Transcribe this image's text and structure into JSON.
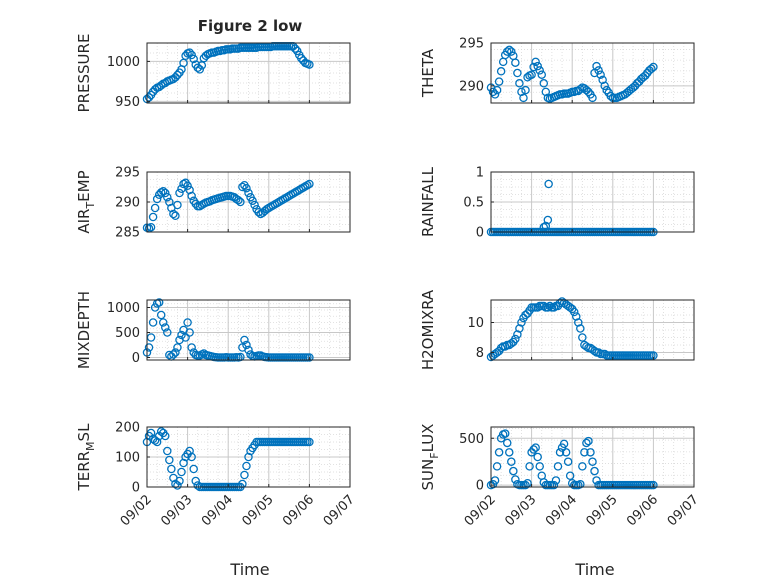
{
  "figure": {
    "title": "Figure 2 low",
    "xlabel": "Time",
    "marker_color": "#0072BD",
    "grid": true
  },
  "time_ticks": [
    "09/02",
    "09/03",
    "09/04",
    "09/05",
    "09/06",
    "09/07"
  ],
  "chart_data": [
    {
      "type": "scatter",
      "ylabel": "PRESSURE",
      "ylim": [
        948,
        1023
      ],
      "yticks": [
        950,
        1000
      ],
      "xlim": [
        0,
        5
      ],
      "x": [
        0.0,
        0.05,
        0.1,
        0.15,
        0.2,
        0.25,
        0.3,
        0.35,
        0.4,
        0.45,
        0.5,
        0.55,
        0.6,
        0.65,
        0.7,
        0.75,
        0.8,
        0.85,
        0.9,
        0.95,
        1.0,
        1.05,
        1.1,
        1.15,
        1.2,
        1.25,
        1.3,
        1.35,
        1.4,
        1.45,
        1.5,
        1.55,
        1.6,
        1.65,
        1.7,
        1.75,
        1.8,
        1.85,
        1.9,
        1.95,
        2.0,
        2.05,
        2.1,
        2.15,
        2.2,
        2.25,
        2.3,
        2.35,
        2.4,
        2.45,
        2.5,
        2.55,
        2.6,
        2.65,
        2.7,
        2.75,
        2.8,
        2.85,
        2.9,
        2.95,
        3.0,
        3.05,
        3.1,
        3.15,
        3.2,
        3.25,
        3.3,
        3.35,
        3.4,
        3.45,
        3.5,
        3.55,
        3.6,
        3.65,
        3.7,
        3.75,
        3.8,
        3.85,
        3.9,
        3.95,
        4.0
      ],
      "y": [
        953,
        955,
        958,
        962,
        965,
        967,
        968,
        970,
        972,
        973,
        975,
        976,
        977,
        978,
        980,
        983,
        986,
        990,
        998,
        1007,
        1010,
        1011,
        1008,
        1003,
        996,
        992,
        990,
        995,
        1004,
        1007,
        1009,
        1010,
        1011,
        1011,
        1012,
        1013,
        1013,
        1014,
        1014,
        1015,
        1015,
        1015,
        1016,
        1016,
        1016,
        1016,
        1017,
        1017,
        1017,
        1017,
        1017,
        1017,
        1017,
        1017,
        1017,
        1018,
        1018,
        1018,
        1018,
        1018,
        1018,
        1018,
        1019,
        1019,
        1019,
        1019,
        1019,
        1019,
        1019,
        1019,
        1019,
        1019,
        1019,
        1016,
        1013,
        1008,
        1004,
        1001,
        998,
        997,
        996
      ]
    },
    {
      "type": "scatter",
      "ylabel": "THETA",
      "ylim": [
        288,
        295
      ],
      "yticks": [
        290,
        295
      ],
      "xlim": [
        0,
        5
      ],
      "x": [
        0.0,
        0.05,
        0.1,
        0.15,
        0.2,
        0.25,
        0.3,
        0.35,
        0.4,
        0.45,
        0.5,
        0.55,
        0.6,
        0.65,
        0.7,
        0.75,
        0.8,
        0.85,
        0.9,
        0.95,
        1.0,
        1.05,
        1.1,
        1.15,
        1.2,
        1.25,
        1.3,
        1.35,
        1.4,
        1.45,
        1.5,
        1.55,
        1.6,
        1.65,
        1.7,
        1.75,
        1.8,
        1.85,
        1.9,
        1.95,
        2.0,
        2.05,
        2.1,
        2.15,
        2.2,
        2.25,
        2.3,
        2.35,
        2.4,
        2.45,
        2.5,
        2.55,
        2.6,
        2.65,
        2.7,
        2.75,
        2.8,
        2.85,
        2.9,
        2.95,
        3.0,
        3.05,
        3.1,
        3.15,
        3.2,
        3.25,
        3.3,
        3.35,
        3.4,
        3.45,
        3.5,
        3.55,
        3.6,
        3.65,
        3.7,
        3.75,
        3.8,
        3.85,
        3.9,
        3.95,
        4.0
      ],
      "y": [
        289.8,
        289.3,
        289.0,
        289.5,
        290.5,
        291.7,
        292.8,
        293.6,
        294.0,
        294.2,
        294.0,
        293.5,
        292.7,
        291.5,
        290.3,
        289.3,
        288.6,
        289.5,
        291.0,
        291.2,
        291.3,
        292.2,
        292.8,
        292.3,
        291.8,
        291.3,
        290.3,
        289.3,
        288.6,
        288.5,
        288.6,
        288.7,
        288.8,
        288.9,
        289.0,
        289.0,
        289.1,
        289.1,
        289.1,
        289.2,
        289.3,
        289.3,
        289.4,
        289.4,
        289.6,
        289.8,
        289.7,
        289.5,
        289.3,
        289.0,
        288.6,
        291.5,
        292.3,
        291.8,
        291.3,
        290.7,
        290.0,
        289.5,
        289.2,
        288.8,
        288.6,
        288.6,
        288.6,
        288.7,
        288.8,
        288.9,
        289.0,
        289.2,
        289.4,
        289.6,
        289.8,
        290.0,
        290.3,
        290.5,
        290.8,
        291.0,
        291.2,
        291.5,
        291.8,
        292.0,
        292.2
      ]
    },
    {
      "type": "scatter",
      "ylabel": "AIR_TEMP",
      "ylim": [
        285,
        295
      ],
      "yticks": [
        285,
        290,
        295
      ],
      "xlim": [
        0,
        5
      ],
      "x": [
        0.0,
        0.05,
        0.1,
        0.15,
        0.2,
        0.25,
        0.3,
        0.35,
        0.4,
        0.45,
        0.5,
        0.55,
        0.6,
        0.65,
        0.7,
        0.75,
        0.8,
        0.85,
        0.9,
        0.95,
        1.0,
        1.05,
        1.1,
        1.15,
        1.2,
        1.25,
        1.3,
        1.35,
        1.4,
        1.45,
        1.5,
        1.55,
        1.6,
        1.65,
        1.7,
        1.75,
        1.8,
        1.85,
        1.9,
        1.95,
        2.0,
        2.05,
        2.1,
        2.15,
        2.2,
        2.25,
        2.3,
        2.35,
        2.4,
        2.45,
        2.5,
        2.55,
        2.6,
        2.65,
        2.7,
        2.75,
        2.8,
        2.85,
        2.9,
        2.95,
        3.0,
        3.05,
        3.1,
        3.15,
        3.2,
        3.25,
        3.3,
        3.35,
        3.4,
        3.45,
        3.5,
        3.55,
        3.6,
        3.65,
        3.7,
        3.75,
        3.8,
        3.85,
        3.9,
        3.95,
        4.0
      ],
      "y": [
        285.7,
        285.6,
        285.8,
        287.5,
        289.0,
        290.5,
        291.2,
        291.6,
        291.8,
        291.5,
        290.8,
        290.0,
        289.0,
        288.0,
        287.7,
        289.5,
        291.5,
        292.2,
        293.0,
        293.2,
        292.7,
        292.0,
        291.0,
        290.2,
        289.7,
        289.3,
        289.3,
        289.5,
        289.7,
        289.9,
        290.0,
        290.1,
        290.3,
        290.4,
        290.5,
        290.6,
        290.7,
        290.8,
        290.9,
        291.0,
        291.0,
        291.0,
        290.9,
        290.8,
        290.5,
        290.3,
        290.0,
        292.5,
        292.8,
        292.3,
        291.5,
        290.8,
        290.2,
        289.5,
        288.8,
        288.3,
        288.0,
        288.2,
        288.5,
        288.8,
        289.0,
        289.2,
        289.4,
        289.6,
        289.8,
        290.0,
        290.2,
        290.4,
        290.6,
        290.8,
        291.0,
        291.2,
        291.4,
        291.6,
        291.8,
        292.0,
        292.2,
        292.4,
        292.6,
        292.8,
        293.0
      ]
    },
    {
      "type": "scatter",
      "ylabel": "RAINFALL",
      "ylim": [
        0,
        1
      ],
      "yticks": [
        0,
        0.5,
        1
      ],
      "xlim": [
        0,
        5
      ],
      "x": [
        0.0,
        0.05,
        0.1,
        0.15,
        0.2,
        0.25,
        0.3,
        0.35,
        0.4,
        0.45,
        0.5,
        0.55,
        0.6,
        0.65,
        0.7,
        0.75,
        0.8,
        0.85,
        0.9,
        0.95,
        1.0,
        1.05,
        1.1,
        1.15,
        1.2,
        1.25,
        1.3,
        1.35,
        1.4,
        1.45,
        1.5,
        1.55,
        1.6,
        1.65,
        1.7,
        1.75,
        1.8,
        1.85,
        1.9,
        1.95,
        2.0,
        2.05,
        2.1,
        2.15,
        2.2,
        2.25,
        2.3,
        2.35,
        2.4,
        2.45,
        2.5,
        2.55,
        2.6,
        2.65,
        2.7,
        2.75,
        2.8,
        2.85,
        2.9,
        2.95,
        3.0,
        3.05,
        3.1,
        3.15,
        3.2,
        3.25,
        3.3,
        3.35,
        3.4,
        3.45,
        3.5,
        3.55,
        3.6,
        3.65,
        3.7,
        3.75,
        3.8,
        3.85,
        3.9,
        3.95,
        4.0,
        1.3,
        1.35,
        1.4,
        1.42
      ],
      "y": [
        0,
        0,
        0,
        0,
        0,
        0,
        0,
        0,
        0,
        0,
        0,
        0,
        0,
        0,
        0,
        0,
        0,
        0,
        0,
        0,
        0,
        0,
        0,
        0,
        0,
        0,
        0,
        0,
        0,
        0,
        0,
        0,
        0,
        0,
        0,
        0,
        0,
        0,
        0,
        0,
        0,
        0,
        0,
        0,
        0,
        0,
        0,
        0,
        0,
        0,
        0,
        0,
        0,
        0,
        0,
        0,
        0,
        0,
        0,
        0,
        0,
        0,
        0,
        0,
        0,
        0,
        0,
        0,
        0,
        0,
        0,
        0,
        0,
        0,
        0,
        0,
        0,
        0,
        0,
        0,
        0,
        0.08,
        0.1,
        0.2,
        0.8
      ]
    },
    {
      "type": "scatter",
      "ylabel": "MIXDEPTH",
      "ylim": [
        -50,
        1150
      ],
      "yticks": [
        0,
        500,
        1000
      ],
      "xlim": [
        0,
        5
      ],
      "x": [
        0.0,
        0.05,
        0.1,
        0.15,
        0.2,
        0.25,
        0.3,
        0.35,
        0.4,
        0.45,
        0.5,
        0.55,
        0.6,
        0.65,
        0.7,
        0.75,
        0.8,
        0.85,
        0.9,
        0.95,
        1.0,
        1.05,
        1.1,
        1.15,
        1.2,
        1.25,
        1.3,
        1.35,
        1.4,
        1.45,
        1.5,
        1.55,
        1.6,
        1.65,
        1.7,
        1.75,
        1.8,
        1.85,
        1.9,
        1.95,
        2.0,
        2.05,
        2.1,
        2.15,
        2.2,
        2.25,
        2.3,
        2.35,
        2.4,
        2.45,
        2.5,
        2.55,
        2.6,
        2.65,
        2.7,
        2.75,
        2.8,
        2.85,
        2.9,
        2.95,
        3.0,
        3.05,
        3.1,
        3.15,
        3.2,
        3.25,
        3.3,
        3.35,
        3.4,
        3.45,
        3.5,
        3.55,
        3.6,
        3.65,
        3.7,
        3.75,
        3.8,
        3.85,
        3.9,
        3.95,
        4.0
      ],
      "y": [
        100,
        200,
        400,
        700,
        1000,
        1080,
        1100,
        850,
        700,
        600,
        500,
        50,
        20,
        60,
        100,
        200,
        350,
        450,
        550,
        400,
        700,
        500,
        200,
        100,
        50,
        40,
        40,
        60,
        80,
        50,
        40,
        30,
        20,
        10,
        5,
        0,
        0,
        0,
        0,
        5,
        0,
        0,
        0,
        0,
        5,
        0,
        10,
        200,
        350,
        250,
        150,
        60,
        30,
        20,
        30,
        40,
        40,
        20,
        10,
        5,
        0,
        0,
        0,
        0,
        0,
        0,
        0,
        0,
        0,
        0,
        0,
        0,
        0,
        0,
        0,
        0,
        0,
        0,
        0,
        0,
        0
      ]
    },
    {
      "type": "scatter",
      "ylabel": "H2OMIXRA",
      "ylim": [
        7.5,
        11.5
      ],
      "yticks": [
        8,
        10
      ],
      "xlim": [
        0,
        5
      ],
      "x": [
        0.0,
        0.05,
        0.1,
        0.15,
        0.2,
        0.25,
        0.3,
        0.35,
        0.4,
        0.45,
        0.5,
        0.55,
        0.6,
        0.65,
        0.7,
        0.75,
        0.8,
        0.85,
        0.9,
        0.95,
        1.0,
        1.05,
        1.1,
        1.15,
        1.2,
        1.25,
        1.3,
        1.35,
        1.4,
        1.45,
        1.5,
        1.55,
        1.6,
        1.65,
        1.7,
        1.75,
        1.8,
        1.85,
        1.9,
        1.95,
        2.0,
        2.05,
        2.1,
        2.15,
        2.2,
        2.25,
        2.3,
        2.35,
        2.4,
        2.45,
        2.5,
        2.55,
        2.6,
        2.65,
        2.7,
        2.75,
        2.8,
        2.85,
        2.9,
        2.95,
        3.0,
        3.05,
        3.1,
        3.15,
        3.2,
        3.25,
        3.3,
        3.35,
        3.4,
        3.45,
        3.5,
        3.55,
        3.6,
        3.65,
        3.7,
        3.75,
        3.8,
        3.85,
        3.9,
        3.95,
        4.0
      ],
      "y": [
        7.7,
        7.8,
        7.9,
        8.0,
        8.1,
        8.3,
        8.4,
        8.4,
        8.5,
        8.5,
        8.6,
        8.7,
        8.9,
        9.2,
        9.6,
        10.0,
        10.3,
        10.5,
        10.6,
        10.8,
        11.0,
        11.0,
        11.0,
        11.0,
        11.1,
        11.1,
        11.1,
        11.0,
        11.0,
        11.1,
        11.0,
        11.0,
        11.1,
        11.1,
        11.3,
        11.4,
        11.3,
        11.2,
        11.1,
        11.0,
        10.9,
        10.7,
        10.4,
        10.0,
        9.6,
        9.0,
        8.5,
        8.4,
        8.3,
        8.3,
        8.2,
        8.1,
        8.0,
        8.0,
        7.9,
        7.9,
        7.9,
        7.8,
        7.8,
        7.8,
        7.8,
        7.8,
        7.8,
        7.8,
        7.8,
        7.8,
        7.8,
        7.8,
        7.8,
        7.8,
        7.8,
        7.8,
        7.8,
        7.8,
        7.8,
        7.8,
        7.8,
        7.8,
        7.8,
        7.8,
        7.8
      ]
    },
    {
      "type": "scatter",
      "ylabel": "TERR_MSL",
      "ylim": [
        0,
        200
      ],
      "yticks": [
        0,
        100,
        200
      ],
      "xlim": [
        0,
        5
      ],
      "x": [
        0.0,
        0.05,
        0.1,
        0.15,
        0.2,
        0.25,
        0.3,
        0.35,
        0.4,
        0.45,
        0.5,
        0.55,
        0.6,
        0.65,
        0.7,
        0.75,
        0.8,
        0.85,
        0.9,
        0.95,
        1.0,
        1.05,
        1.1,
        1.15,
        1.2,
        1.25,
        1.3,
        1.35,
        1.4,
        1.45,
        1.5,
        1.55,
        1.6,
        1.65,
        1.7,
        1.75,
        1.8,
        1.85,
        1.9,
        1.95,
        2.0,
        2.05,
        2.1,
        2.15,
        2.2,
        2.25,
        2.3,
        2.35,
        2.4,
        2.45,
        2.5,
        2.55,
        2.6,
        2.65,
        2.7,
        2.75,
        2.8,
        2.85,
        2.9,
        2.95,
        3.0,
        3.05,
        3.1,
        3.15,
        3.2,
        3.25,
        3.3,
        3.35,
        3.4,
        3.45,
        3.5,
        3.55,
        3.6,
        3.65,
        3.7,
        3.75,
        3.8,
        3.85,
        3.9,
        3.95,
        4.0
      ],
      "y": [
        150,
        170,
        180,
        160,
        155,
        150,
        170,
        185,
        180,
        170,
        120,
        90,
        60,
        30,
        10,
        5,
        20,
        50,
        80,
        100,
        110,
        120,
        100,
        60,
        20,
        5,
        0,
        0,
        0,
        0,
        0,
        0,
        0,
        0,
        0,
        0,
        0,
        0,
        0,
        0,
        0,
        0,
        0,
        0,
        0,
        0,
        0,
        10,
        40,
        70,
        100,
        120,
        130,
        140,
        150,
        150,
        150,
        150,
        150,
        150,
        150,
        150,
        150,
        150,
        150,
        150,
        150,
        150,
        150,
        150,
        150,
        150,
        150,
        150,
        150,
        150,
        150,
        150,
        150,
        150,
        150
      ]
    },
    {
      "type": "scatter",
      "ylabel": "SUN_FLUX",
      "ylim": [
        -20,
        620
      ],
      "yticks": [
        0,
        500
      ],
      "xlim": [
        0,
        5
      ],
      "x": [
        0.0,
        0.05,
        0.1,
        0.15,
        0.2,
        0.25,
        0.3,
        0.35,
        0.4,
        0.45,
        0.5,
        0.55,
        0.6,
        0.65,
        0.7,
        0.75,
        0.8,
        0.85,
        0.9,
        0.95,
        1.0,
        1.05,
        1.1,
        1.15,
        1.2,
        1.25,
        1.3,
        1.35,
        1.4,
        1.45,
        1.5,
        1.55,
        1.6,
        1.65,
        1.7,
        1.75,
        1.8,
        1.85,
        1.9,
        1.95,
        2.0,
        2.05,
        2.1,
        2.15,
        2.2,
        2.25,
        2.3,
        2.35,
        2.4,
        2.45,
        2.5,
        2.55,
        2.6,
        2.65,
        2.7,
        2.75,
        2.8,
        2.85,
        2.9,
        2.95,
        3.0,
        3.05,
        3.1,
        3.15,
        3.2,
        3.25,
        3.3,
        3.35,
        3.4,
        3.45,
        3.5,
        3.55,
        3.6,
        3.65,
        3.7,
        3.75,
        3.8,
        3.85,
        3.9,
        3.95,
        4.0
      ],
      "y": [
        0,
        10,
        50,
        200,
        350,
        500,
        540,
        550,
        450,
        350,
        250,
        150,
        60,
        10,
        0,
        0,
        0,
        0,
        20,
        200,
        350,
        380,
        400,
        300,
        200,
        100,
        30,
        0,
        0,
        0,
        0,
        0,
        50,
        200,
        350,
        400,
        440,
        350,
        250,
        100,
        20,
        0,
        0,
        0,
        10,
        200,
        350,
        450,
        470,
        350,
        250,
        150,
        50,
        0,
        0,
        0,
        0,
        0,
        0,
        0,
        0,
        0,
        0,
        0,
        0,
        0,
        0,
        0,
        0,
        0,
        0,
        0,
        0,
        0,
        0,
        0,
        0,
        0,
        0,
        0,
        0
      ]
    }
  ]
}
